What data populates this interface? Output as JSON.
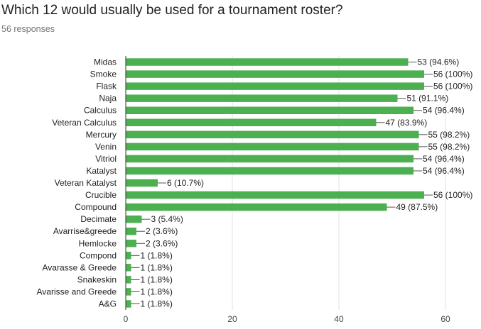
{
  "header": {
    "title": "Which 12 would usually be used for a tournament roster?",
    "responses": "56 responses"
  },
  "colors": {
    "bar": "#4caf50",
    "grid": "#e0e0e0",
    "axis": "#333333",
    "leader": "#555555"
  },
  "chart_data": {
    "type": "bar",
    "orientation": "horizontal",
    "title": "Which 12 would usually be used for a tournament roster?",
    "subtitle": "56 responses",
    "categories": [
      "Midas",
      "Smoke",
      "Flask",
      "Naja",
      "Calculus",
      "Veteran Calculus",
      "Mercury",
      "Venin",
      "Vitriol",
      "Katalyst",
      "Veteran Katalyst",
      "Crucible",
      "Compound",
      "Decimate",
      "Avarrise&greede",
      "Hemlocke",
      "Compond",
      "Avarasse & Greede",
      "Snakeskin",
      "Avarisse and Greede",
      "A&G"
    ],
    "values": [
      53,
      56,
      56,
      51,
      54,
      47,
      55,
      55,
      54,
      54,
      6,
      56,
      49,
      3,
      2,
      2,
      1,
      1,
      1,
      1,
      1
    ],
    "labels": [
      "53 (94.6%)",
      "56 (100%)",
      "56 (100%)",
      "51 (91.1%)",
      "54 (96.4%)",
      "47 (83.9%)",
      "55 (98.2%)",
      "55 (98.2%)",
      "54 (96.4%)",
      "54 (96.4%)",
      "6 (10.7%)",
      "56 (100%)",
      "49 (87.5%)",
      "3 (5.4%)",
      "2 (3.6%)",
      "2 (3.6%)",
      "1 (1.8%)",
      "1 (1.8%)",
      "1 (1.8%)",
      "1 (1.8%)",
      "1 (1.8%)"
    ],
    "xlim": [
      0,
      60
    ],
    "xticks": [
      0,
      20,
      40,
      60
    ],
    "xlabel": "",
    "ylabel": "",
    "grid": true,
    "legend": "none"
  }
}
